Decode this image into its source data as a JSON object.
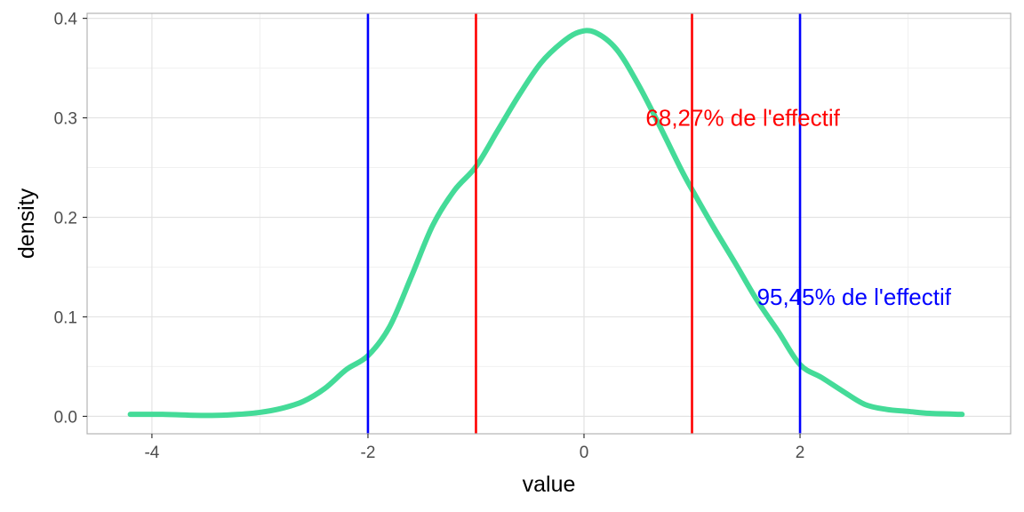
{
  "chart_data": {
    "type": "line",
    "xlabel": "value",
    "ylabel": "density",
    "xlim": [
      -4.6,
      3.95
    ],
    "ylim": [
      -0.0175,
      0.405
    ],
    "x_ticks": [
      -4,
      -2,
      0,
      2
    ],
    "x_tick_labels": [
      "-4",
      "-2",
      "0",
      "2"
    ],
    "y_ticks": [
      0.0,
      0.1,
      0.2,
      0.3,
      0.4
    ],
    "y_tick_labels": [
      "0.0",
      "0.1",
      "0.2",
      "0.3",
      "0.4"
    ],
    "grid": true,
    "series": [
      {
        "color": "#44db98",
        "x": [
          -4.2,
          -3.9,
          -3.6,
          -3.4,
          -3.2,
          -3.0,
          -2.8,
          -2.6,
          -2.4,
          -2.2,
          -2.0,
          -1.8,
          -1.6,
          -1.4,
          -1.2,
          -1.0,
          -0.8,
          -0.6,
          -0.4,
          -0.2,
          -0.05,
          0.1,
          0.3,
          0.5,
          0.7,
          0.9,
          1.0,
          1.2,
          1.4,
          1.6,
          1.8,
          2.0,
          2.2,
          2.4,
          2.6,
          2.8,
          3.0,
          3.2,
          3.5
        ],
        "y": [
          0.002,
          0.002,
          0.001,
          0.001,
          0.002,
          0.004,
          0.008,
          0.015,
          0.028,
          0.047,
          0.061,
          0.09,
          0.14,
          0.192,
          0.227,
          0.251,
          0.287,
          0.323,
          0.355,
          0.376,
          0.386,
          0.386,
          0.369,
          0.334,
          0.292,
          0.248,
          0.228,
          0.19,
          0.154,
          0.117,
          0.085,
          0.052,
          0.039,
          0.025,
          0.012,
          0.007,
          0.005,
          0.003,
          0.002
        ]
      }
    ],
    "vlines": [
      {
        "x": -2.0,
        "color": "#0000ff"
      },
      {
        "x": -1.0,
        "color": "#ff0000"
      },
      {
        "x": 1.0,
        "color": "#ff0000"
      },
      {
        "x": 2.0,
        "color": "#0000ff"
      }
    ],
    "annotations": [
      {
        "text": "68,27% de l'effectif",
        "x": 1.47,
        "y": 0.3,
        "color": "#ff0000"
      },
      {
        "text": "95,45% de l'effectif",
        "x": 2.5,
        "y": 0.12,
        "color": "#0000ff"
      }
    ]
  }
}
